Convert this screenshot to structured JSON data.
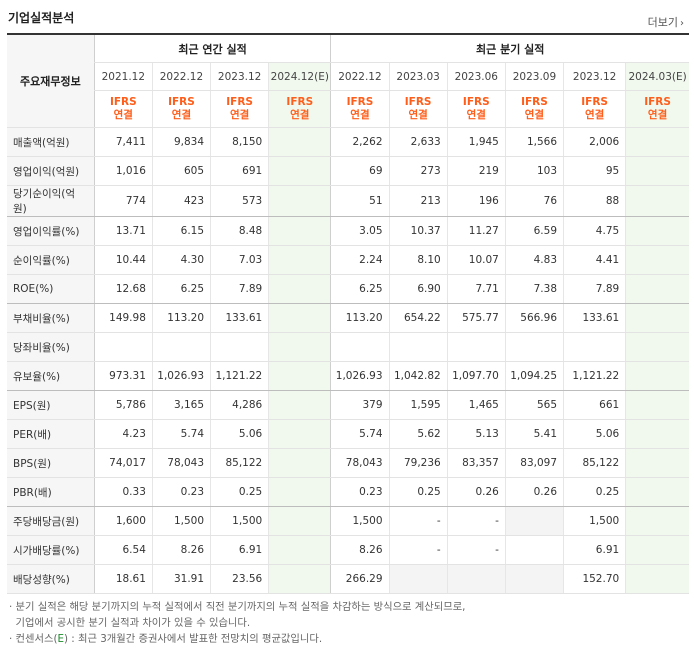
{
  "header": {
    "title": "기업실적분석",
    "more_label": "더보기"
  },
  "table": {
    "corner_label": "주요재무정보",
    "group_annual": "최근 연간 실적",
    "group_quarter": "최근 분기 실적",
    "periods": [
      {
        "label": "2021.12",
        "estimate": false
      },
      {
        "label": "2022.12",
        "estimate": false
      },
      {
        "label": "2023.12",
        "estimate": false
      },
      {
        "label": "2024.12(E)",
        "estimate": true
      },
      {
        "label": "2022.12",
        "estimate": false
      },
      {
        "label": "2023.03",
        "estimate": false
      },
      {
        "label": "2023.06",
        "estimate": false
      },
      {
        "label": "2023.09",
        "estimate": false
      },
      {
        "label": "2023.12",
        "estimate": false
      },
      {
        "label": "2024.03(E)",
        "estimate": true
      }
    ],
    "ifrs_line1": "IFRS",
    "ifrs_line2": "연결",
    "rows": [
      {
        "label": "매출액(억원)",
        "values": [
          "7,411",
          "9,834",
          "8,150",
          "",
          "2,262",
          "2,633",
          "1,945",
          "1,566",
          "2,006",
          ""
        ]
      },
      {
        "label": "영업이익(억원)",
        "values": [
          "1,016",
          "605",
          "691",
          "",
          "69",
          "273",
          "219",
          "103",
          "95",
          ""
        ]
      },
      {
        "label": "당기순이익(억원)",
        "values": [
          "774",
          "423",
          "573",
          "",
          "51",
          "213",
          "196",
          "76",
          "88",
          ""
        ]
      },
      {
        "label": "영업이익률(%)",
        "values": [
          "13.71",
          "6.15",
          "8.48",
          "",
          "3.05",
          "10.37",
          "11.27",
          "6.59",
          "4.75",
          ""
        ]
      },
      {
        "label": "순이익률(%)",
        "values": [
          "10.44",
          "4.30",
          "7.03",
          "",
          "2.24",
          "8.10",
          "10.07",
          "4.83",
          "4.41",
          ""
        ]
      },
      {
        "label": "ROE(%)",
        "values": [
          "12.68",
          "6.25",
          "7.89",
          "",
          "6.25",
          "6.90",
          "7.71",
          "7.38",
          "7.89",
          ""
        ]
      },
      {
        "label": "부채비율(%)",
        "values": [
          "149.98",
          "113.20",
          "133.61",
          "",
          "113.20",
          "654.22",
          "575.77",
          "566.96",
          "133.61",
          ""
        ]
      },
      {
        "label": "당좌비율(%)",
        "values": [
          "",
          "",
          "",
          "",
          "",
          "",
          "",
          "",
          "",
          ""
        ]
      },
      {
        "label": "유보율(%)",
        "values": [
          "973.31",
          "1,026.93",
          "1,121.22",
          "",
          "1,026.93",
          "1,042.82",
          "1,097.70",
          "1,094.25",
          "1,121.22",
          ""
        ]
      },
      {
        "label": "EPS(원)",
        "values": [
          "5,786",
          "3,165",
          "4,286",
          "",
          "379",
          "1,595",
          "1,465",
          "565",
          "661",
          ""
        ]
      },
      {
        "label": "PER(배)",
        "values": [
          "4.23",
          "5.74",
          "5.06",
          "",
          "5.74",
          "5.62",
          "5.13",
          "5.41",
          "5.06",
          ""
        ]
      },
      {
        "label": "BPS(원)",
        "values": [
          "74,017",
          "78,043",
          "85,122",
          "",
          "78,043",
          "79,236",
          "83,357",
          "83,097",
          "85,122",
          ""
        ]
      },
      {
        "label": "PBR(배)",
        "values": [
          "0.33",
          "0.23",
          "0.25",
          "",
          "0.23",
          "0.25",
          "0.26",
          "0.26",
          "0.25",
          ""
        ]
      },
      {
        "label": "주당배당금(원)",
        "values": [
          "1,600",
          "1,500",
          "1,500",
          "",
          "1,500",
          "-",
          "-",
          "",
          "1,500",
          ""
        ]
      },
      {
        "label": "시가배당률(%)",
        "values": [
          "6.54",
          "8.26",
          "6.91",
          "",
          "8.26",
          "-",
          "-",
          "",
          "6.91",
          ""
        ]
      },
      {
        "label": "배당성향(%)",
        "values": [
          "18.61",
          "31.91",
          "23.56",
          "",
          "266.29",
          "",
          "",
          "",
          "152.70",
          ""
        ]
      }
    ]
  },
  "notes": {
    "line1": "· 분기 실적은 해당 분기까지의 누적 실적에서 직전 분기까지의 누적 실적을 차감하는 방식으로 계산되므로,",
    "line2": "  기업에서 공시한 분기 실적과 차이가 있을 수 있습니다.",
    "line3_prefix": "· 컨센서스(",
    "line3_e": "E",
    "line3_suffix": ") : 최근 3개월간 증권사에서 발표한 전망치의 평균값입니다."
  }
}
